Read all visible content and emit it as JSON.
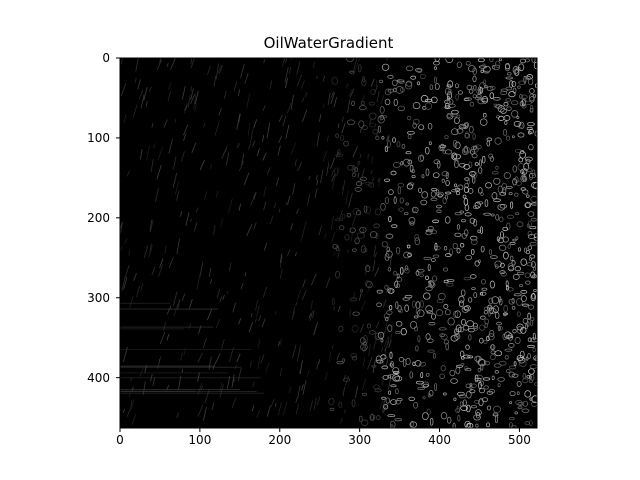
{
  "figure": {
    "title": "OilWaterGradient",
    "image": {
      "width": 522,
      "height": 463,
      "colormap": "gray",
      "background_color": "#000000",
      "edge_color": "#ffffff"
    },
    "x_axis": {
      "ticks": [
        {
          "value": 0,
          "label": "0"
        },
        {
          "value": 100,
          "label": "100"
        },
        {
          "value": 200,
          "label": "200"
        },
        {
          "value": 300,
          "label": "300"
        },
        {
          "value": 400,
          "label": "400"
        },
        {
          "value": 500,
          "label": "500"
        }
      ]
    },
    "y_axis": {
      "ticks": [
        {
          "value": 0,
          "label": "0"
        },
        {
          "value": 100,
          "label": "100"
        },
        {
          "value": 200,
          "label": "200"
        },
        {
          "value": 300,
          "label": "300"
        },
        {
          "value": 400,
          "label": "400"
        }
      ]
    }
  }
}
